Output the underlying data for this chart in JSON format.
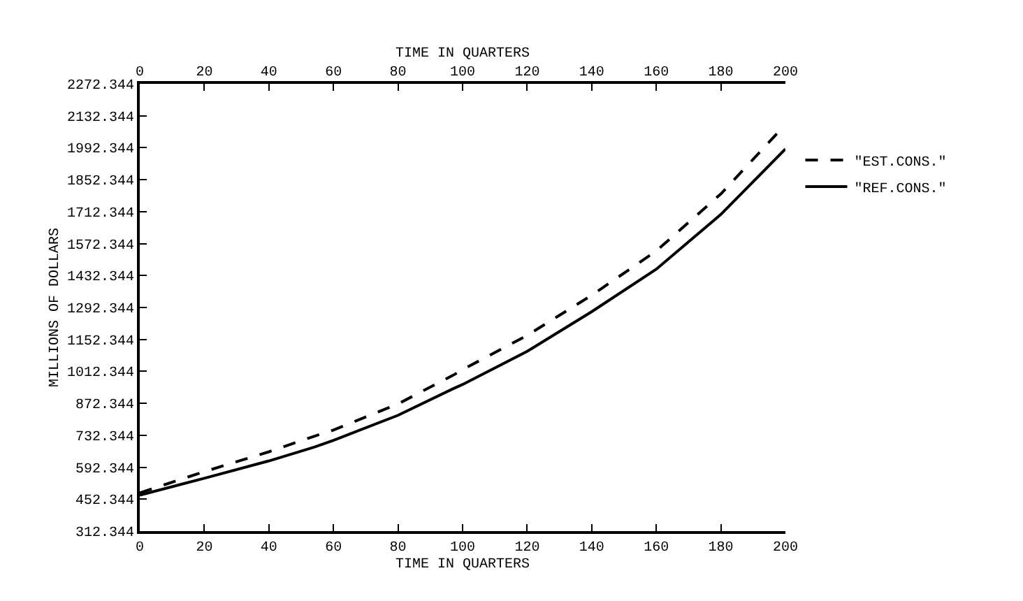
{
  "chart_data": {
    "type": "line",
    "xlabel": "TIME IN QUARTERS",
    "x2label": "TIME IN QUARTERS",
    "ylabel": "MILLIONS OF DOLLARS",
    "x": [
      0,
      20,
      40,
      54,
      60,
      80,
      97,
      100,
      120,
      140,
      160,
      180,
      200
    ],
    "series": [
      {
        "name": "\"EST.CONS.\"",
        "color": "#000000",
        "line_style": "dashed",
        "values": [
          480,
          573,
          660,
          728,
          755,
          870,
          995,
          1020,
          1170,
          1346,
          1540,
          1790,
          2094
        ]
      },
      {
        "name": "\"REF.CONS.\"",
        "color": "#000000",
        "line_style": "solid",
        "values": [
          470,
          544,
          620,
          680,
          710,
          820,
          936,
          955,
          1100,
          1274,
          1460,
          1700,
          1987
        ]
      }
    ],
    "xlim": [
      0,
      200
    ],
    "xticks": [
      0,
      20,
      40,
      60,
      80,
      100,
      120,
      140,
      160,
      180,
      200
    ],
    "x2lim": [
      0,
      200
    ],
    "x2ticks": [
      0,
      20,
      40,
      60,
      80,
      100,
      120,
      140,
      160,
      180,
      200
    ],
    "ylim": [
      312.344,
      2272.344
    ],
    "yticks": [
      312.344,
      452.344,
      592.344,
      732.344,
      872.344,
      1012.344,
      1152.344,
      1292.344,
      1432.344,
      1572.344,
      1712.344,
      1852.344,
      1992.344,
      2132.344,
      2272.344
    ],
    "legend": "right",
    "marker": "none"
  }
}
